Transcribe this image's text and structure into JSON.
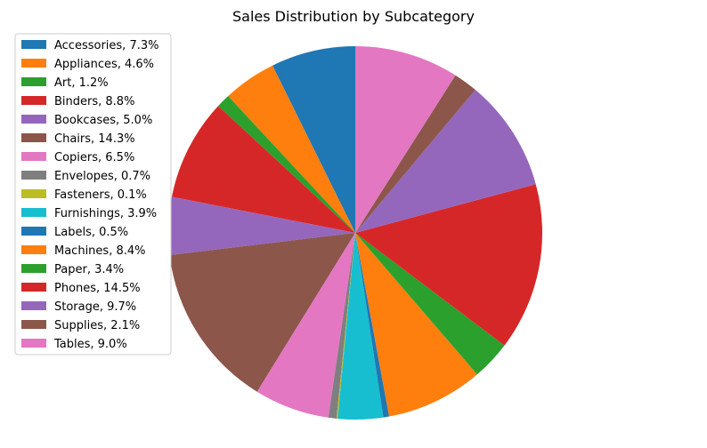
{
  "chart_data": {
    "type": "pie",
    "title": "Sales Distribution by Subcategory",
    "legend_position": "top-left",
    "start_angle_deg": 90,
    "direction": "counterclockwise",
    "slices": [
      {
        "label": "Accessories, 7.3%",
        "name": "Accessories",
        "value": 7.3,
        "color": "#1f77b4"
      },
      {
        "label": "Appliances, 4.6%",
        "name": "Appliances",
        "value": 4.6,
        "color": "#ff7f0e"
      },
      {
        "label": "Art, 1.2%",
        "name": "Art",
        "value": 1.2,
        "color": "#2ca02c"
      },
      {
        "label": "Binders, 8.8%",
        "name": "Binders",
        "value": 8.8,
        "color": "#d62728"
      },
      {
        "label": "Bookcases, 5.0%",
        "name": "Bookcases",
        "value": 5.0,
        "color": "#9467bd"
      },
      {
        "label": "Chairs, 14.3%",
        "name": "Chairs",
        "value": 14.3,
        "color": "#8c564b"
      },
      {
        "label": "Copiers, 6.5%",
        "name": "Copiers",
        "value": 6.5,
        "color": "#e377c2"
      },
      {
        "label": "Envelopes, 0.7%",
        "name": "Envelopes",
        "value": 0.7,
        "color": "#7f7f7f"
      },
      {
        "label": "Fasteners, 0.1%",
        "name": "Fasteners",
        "value": 0.1,
        "color": "#bcbd22"
      },
      {
        "label": "Furnishings, 3.9%",
        "name": "Furnishings",
        "value": 3.9,
        "color": "#17becf"
      },
      {
        "label": "Labels, 0.5%",
        "name": "Labels",
        "value": 0.5,
        "color": "#1f77b4"
      },
      {
        "label": "Machines, 8.4%",
        "name": "Machines",
        "value": 8.4,
        "color": "#ff7f0e"
      },
      {
        "label": "Paper, 3.4%",
        "name": "Paper",
        "value": 3.4,
        "color": "#2ca02c"
      },
      {
        "label": "Phones, 14.5%",
        "name": "Phones",
        "value": 14.5,
        "color": "#d62728"
      },
      {
        "label": "Storage, 9.7%",
        "name": "Storage",
        "value": 9.7,
        "color": "#9467bd"
      },
      {
        "label": "Supplies, 2.1%",
        "name": "Supplies",
        "value": 2.1,
        "color": "#8c564b"
      },
      {
        "label": "Tables, 9.0%",
        "name": "Tables",
        "value": 9.0,
        "color": "#e377c2"
      }
    ]
  }
}
